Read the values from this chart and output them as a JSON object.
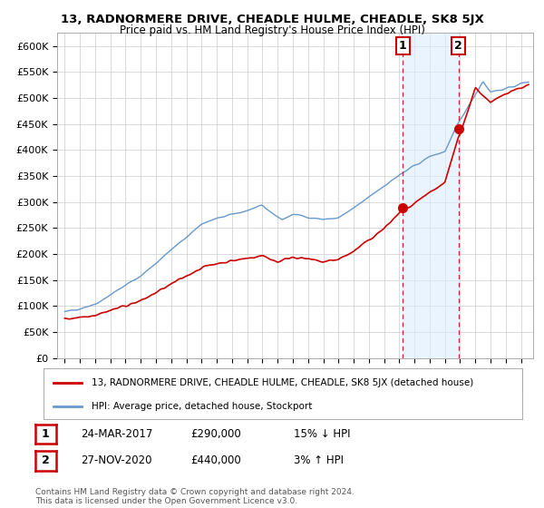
{
  "title": "13, RADNORMERE DRIVE, CHEADLE HULME, CHEADLE, SK8 5JX",
  "subtitle": "Price paid vs. HM Land Registry's House Price Index (HPI)",
  "ylabel_ticks": [
    "£0",
    "£50K",
    "£100K",
    "£150K",
    "£200K",
    "£250K",
    "£300K",
    "£350K",
    "£400K",
    "£450K",
    "£500K",
    "£550K",
    "£600K"
  ],
  "ytick_values": [
    0,
    50000,
    100000,
    150000,
    200000,
    250000,
    300000,
    350000,
    400000,
    450000,
    500000,
    550000,
    600000
  ],
  "ylim": [
    0,
    625000
  ],
  "hpi_color": "#6699cc",
  "price_color": "#cc0000",
  "t1_x": 2017.22,
  "t1_y": 290000,
  "t2_x": 2020.9,
  "t2_y": 440000,
  "shade_color": "#ddeeff",
  "transaction1": {
    "label": "1",
    "date": "24-MAR-2017",
    "price": "£290,000",
    "change": "15% ↓ HPI"
  },
  "transaction2": {
    "label": "2",
    "date": "27-NOV-2020",
    "price": "£440,000",
    "change": "3% ↑ HPI"
  },
  "legend_line1": "13, RADNORMERE DRIVE, CHEADLE HULME, CHEADLE, SK8 5JX (detached house)",
  "legend_line2": "HPI: Average price, detached house, Stockport",
  "footer": "Contains HM Land Registry data © Crown copyright and database right 2024.\nThis data is licensed under the Open Government Licence v3.0.",
  "background_color": "#ffffff",
  "grid_color": "#cccccc",
  "xlim_left": 1994.5,
  "xlim_right": 2025.8
}
